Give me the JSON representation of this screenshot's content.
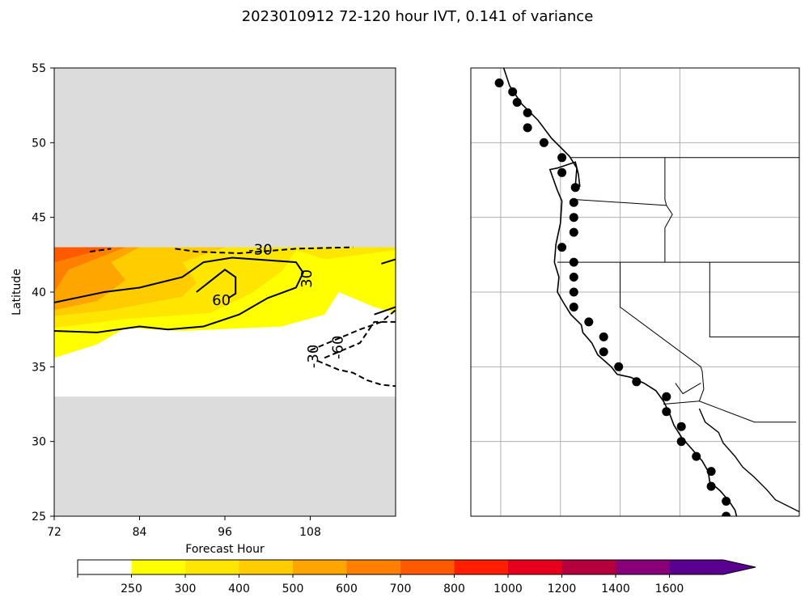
{
  "figure": {
    "title": "2023010912 72-120 hour IVT, 0.141 of variance"
  },
  "chart_data": [
    {
      "type": "contour",
      "xlabel": "Forecast Hour",
      "ylabel": "Latitude",
      "xlim": [
        72,
        120
      ],
      "ylim": [
        25,
        55
      ],
      "xticks": [
        "72",
        "84",
        "96",
        "108"
      ],
      "yticks": [
        "25",
        "30",
        "35",
        "40",
        "45",
        "50",
        "55"
      ],
      "missing_color": "#dcdcdc",
      "data_lat_range": [
        33,
        43
      ],
      "fill_bands": [
        {
          "level": 0,
          "points": [
            [
              72,
              43
            ],
            [
              120,
              43
            ],
            [
              120,
              33
            ],
            [
              72,
              33
            ]
          ]
        },
        {
          "level": 250,
          "points": [
            [
              72,
              43
            ],
            [
              120,
              43
            ],
            [
              120,
              38.6
            ],
            [
              117,
              39
            ],
            [
              112,
              40
            ],
            [
              110,
              38.5
            ],
            [
              104,
              37.7
            ],
            [
              90,
              37.4
            ],
            [
              82,
              37.6
            ],
            [
              78,
              36.5
            ],
            [
              72,
              35.6
            ]
          ]
        },
        {
          "level": 300,
          "points": [
            [
              72,
              43
            ],
            [
              120,
              43
            ],
            [
              120,
              42.8
            ],
            [
              110,
              42.2
            ],
            [
              106,
              42.8
            ],
            [
              104,
              41.4
            ],
            [
              100,
              40
            ],
            [
              94,
              38.6
            ],
            [
              82,
              38.2
            ],
            [
              72,
              37.6
            ]
          ]
        },
        {
          "level": 400,
          "points": [
            [
              72,
              43
            ],
            [
              96,
              43
            ],
            [
              90,
              42
            ],
            [
              92,
              40.6
            ],
            [
              90,
              39.7
            ],
            [
              80,
              38.8
            ],
            [
              72,
              38.4
            ]
          ]
        },
        {
          "level": 500,
          "points": [
            [
              72,
              43
            ],
            [
              84,
              43
            ],
            [
              80,
              42
            ],
            [
              82,
              40.8
            ],
            [
              78,
              39.4
            ],
            [
              72,
              38.8
            ]
          ]
        },
        {
          "level": 600,
          "points": [
            [
              72,
              43
            ],
            [
              82,
              43
            ],
            [
              74,
              41.5
            ],
            [
              72,
              40
            ]
          ]
        },
        {
          "level": 700,
          "points": [
            [
              72,
              43
            ],
            [
              80,
              43
            ],
            [
              72,
              42
            ]
          ]
        }
      ],
      "contour_labels": [
        {
          "text": "-30",
          "x": 101,
          "y": 42.8,
          "rotation": 0
        },
        {
          "text": "30",
          "x": 107.6,
          "y": 40.9,
          "rotation": -90
        },
        {
          "text": "60",
          "x": 95.5,
          "y": 39.4,
          "rotation": 0
        },
        {
          "text": "-30",
          "x": 108.5,
          "y": 35.7,
          "rotation": -90
        },
        {
          "text": "-60",
          "x": 112,
          "y": 36.3,
          "rotation": -90
        }
      ],
      "solid_contours": [
        [
          [
            72,
            39.3
          ],
          [
            79,
            40
          ],
          [
            84,
            40.3
          ],
          [
            90,
            41
          ],
          [
            93,
            42
          ],
          [
            97,
            42.3
          ],
          [
            106,
            42
          ],
          [
            107,
            41.3
          ],
          [
            106,
            40.3
          ],
          [
            102,
            39.6
          ],
          [
            98,
            38.5
          ],
          [
            93,
            37.7
          ],
          [
            88,
            37.5
          ],
          [
            84,
            37.7
          ],
          [
            78,
            37.3
          ],
          [
            72,
            37.4
          ]
        ],
        [
          [
            92,
            40
          ],
          [
            96,
            41.5
          ],
          [
            97.5,
            41
          ],
          [
            97.5,
            39.9
          ],
          [
            96.5,
            39.6
          ]
        ],
        [
          [
            120,
            42.2
          ],
          [
            118,
            41.9
          ]
        ],
        [
          [
            120,
            39
          ],
          [
            117,
            38.5
          ]
        ]
      ],
      "dashed_contours": [
        [
          [
            77,
            42.7
          ],
          [
            80,
            42.9
          ]
        ],
        [
          [
            89,
            42.9
          ],
          [
            92,
            42.7
          ],
          [
            98,
            42.6
          ],
          [
            106,
            42.9
          ],
          [
            114,
            43
          ]
        ],
        [
          [
            108,
            36.1
          ],
          [
            115,
            37.5
          ],
          [
            118,
            38
          ],
          [
            120,
            38.8
          ]
        ],
        [
          [
            110,
            35.6
          ],
          [
            115,
            36.6
          ],
          [
            117,
            38
          ],
          [
            120,
            38
          ]
        ],
        [
          [
            109,
            35.4
          ],
          [
            112,
            34.8
          ],
          [
            114,
            34.6
          ],
          [
            116,
            34.1
          ],
          [
            118,
            33.8
          ],
          [
            120,
            33.7
          ]
        ]
      ]
    }
  ],
  "map": {
    "lon_range": [
      -130,
      -108
    ],
    "lat_range": [
      25,
      55
    ],
    "grid_lons": [
      -128,
      -124,
      -120,
      -116
    ],
    "grid_lats": [
      30,
      35,
      40,
      45,
      50
    ],
    "coastline": [
      [
        -127.8,
        55
      ],
      [
        -127.4,
        53.8
      ],
      [
        -126.6,
        52.6
      ],
      [
        -125.5,
        51.5
      ],
      [
        -124.6,
        50.3
      ],
      [
        -123.4,
        49.1
      ],
      [
        -122.9,
        48.3
      ],
      [
        -123,
        47.1
      ],
      [
        -122.7,
        47.1
      ],
      [
        -122.8,
        47.9
      ],
      [
        -123,
        48.7
      ],
      [
        -124.2,
        48.3
      ],
      [
        -124.7,
        48.2
      ],
      [
        -124.2,
        46.8
      ],
      [
        -123.9,
        46.1
      ],
      [
        -124,
        44.6
      ],
      [
        -124.3,
        43.2
      ],
      [
        -124.4,
        42
      ],
      [
        -124.1,
        41
      ],
      [
        -124.2,
        40
      ],
      [
        -123.8,
        39.3
      ],
      [
        -123.3,
        38.5
      ],
      [
        -122.6,
        37.8
      ],
      [
        -122.5,
        37.3
      ],
      [
        -121.9,
        36.6
      ],
      [
        -121.5,
        35.8
      ],
      [
        -120.6,
        35
      ],
      [
        -120.2,
        34.5
      ],
      [
        -119.3,
        34.3
      ],
      [
        -118.4,
        33.9
      ],
      [
        -117.6,
        33.4
      ],
      [
        -117.1,
        32.7
      ],
      [
        -116.7,
        31.9
      ],
      [
        -116.4,
        31.1
      ],
      [
        -115.9,
        30.3
      ],
      [
        -115.2,
        29.5
      ],
      [
        -114.5,
        28.7
      ],
      [
        -114.1,
        28
      ],
      [
        -114,
        27.3
      ],
      [
        -113.3,
        26.7
      ],
      [
        -112.7,
        26
      ],
      [
        -112.3,
        25.4
      ],
      [
        -112.2,
        25
      ]
    ],
    "gulf_coast": [
      [
        -114.7,
        32.2
      ],
      [
        -114.3,
        31.3
      ],
      [
        -113.4,
        30.6
      ],
      [
        -113.1,
        29.9
      ],
      [
        -112.3,
        29
      ],
      [
        -111.8,
        28.3
      ],
      [
        -111,
        27.6
      ],
      [
        -110.2,
        26.8
      ],
      [
        -109.6,
        26.1
      ],
      [
        -108,
        25.3
      ]
    ],
    "borders": [
      [
        [
          -123.3,
          49
        ],
        [
          -108,
          49
        ]
      ],
      [
        [
          -124.2,
          42
        ],
        [
          -108,
          42
        ]
      ],
      [
        [
          -117,
          49
        ],
        [
          -117,
          46.2
        ],
        [
          -116.9,
          45.8
        ],
        [
          -116.5,
          45.2
        ],
        [
          -117,
          44.3
        ],
        [
          -117,
          42
        ]
      ],
      [
        [
          -120,
          42
        ],
        [
          -120,
          39
        ],
        [
          -114.6,
          35
        ],
        [
          -114.5,
          34.7
        ],
        [
          -114.4,
          33.5
        ],
        [
          -114.7,
          32.7
        ]
      ],
      [
        [
          -117.1,
          32.5
        ],
        [
          -114.7,
          32.7
        ],
        [
          -111,
          31.3
        ],
        [
          -108.2,
          31.3
        ]
      ],
      [
        [
          -114,
          42
        ],
        [
          -114,
          37
        ],
        [
          -108,
          37
        ]
      ],
      [
        [
          -116.9,
          45.8
        ],
        [
          -123.1,
          46.2
        ]
      ],
      [
        [
          -114.6,
          33.9
        ],
        [
          -115.8,
          33.2
        ],
        [
          -116.3,
          33.9
        ]
      ]
    ],
    "points": [
      [
        -128.1,
        54
      ],
      [
        -127.2,
        53.4
      ],
      [
        -126.9,
        52.7
      ],
      [
        -126.2,
        52
      ],
      [
        -126.2,
        51
      ],
      [
        -125.1,
        50
      ],
      [
        -123.9,
        49
      ],
      [
        -123.9,
        48
      ],
      [
        -123,
        47
      ],
      [
        -123.1,
        46
      ],
      [
        -123.1,
        45
      ],
      [
        -123.1,
        44
      ],
      [
        -123.9,
        43
      ],
      [
        -123.1,
        42
      ],
      [
        -123.1,
        41
      ],
      [
        -123.1,
        40
      ],
      [
        -123.1,
        39
      ],
      [
        -122.1,
        38
      ],
      [
        -121.1,
        37
      ],
      [
        -121.1,
        36
      ],
      [
        -120.1,
        35
      ],
      [
        -118.9,
        34
      ],
      [
        -116.9,
        33
      ],
      [
        -116.9,
        32
      ],
      [
        -115.9,
        31
      ],
      [
        -115.9,
        30
      ],
      [
        -114.9,
        29
      ],
      [
        -113.9,
        28
      ],
      [
        -113.9,
        27
      ],
      [
        -112.9,
        26
      ],
      [
        -112.9,
        25
      ]
    ]
  },
  "colorbar": {
    "tick_labels": [
      "250",
      "300",
      "400",
      "500",
      "600",
      "700",
      "800",
      "1000",
      "1200",
      "1400",
      "1600"
    ],
    "colors": [
      "#ffffff",
      "#ffff00",
      "#ffe600",
      "#ffcc00",
      "#ffa500",
      "#ff8000",
      "#ff5a00",
      "#ff1e00",
      "#e6001e",
      "#b4003c",
      "#880077",
      "#5a0090"
    ],
    "extend_color": "#5a0090"
  }
}
